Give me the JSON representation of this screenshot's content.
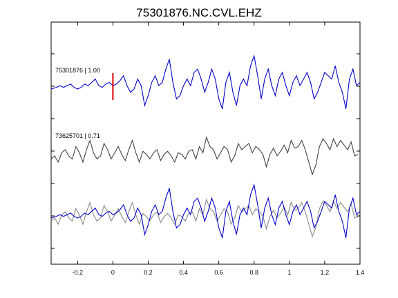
{
  "chart_data": {
    "type": "line",
    "title": "75301876.NC.CVL.EHZ",
    "xlabel": "",
    "ylabel": "",
    "xlim": [
      -0.35,
      1.4
    ],
    "xticks": [
      -0.2,
      0,
      0.2,
      0.4,
      0.6,
      0.8,
      1,
      1.2,
      1.4
    ],
    "xtick_labels": [
      "-0.2",
      "0",
      "0.2",
      "0.4",
      "0.6",
      "0.8",
      "1",
      "1.2",
      "1.4"
    ],
    "grid": false,
    "pick_time": 0,
    "pick_color": "#dd0000",
    "colors": {
      "target": "#0000cc",
      "reference": "#404040",
      "reference_overlay": "#888888",
      "axes": "#000000"
    },
    "traces": [
      {
        "label": "75301876 | 1.00",
        "role": "target"
      },
      {
        "label": "73625701 | 0.71",
        "role": "reference"
      },
      {
        "label": "",
        "role": "overlay"
      }
    ],
    "series": [
      {
        "name": "75301876",
        "x": [
          -0.35,
          -0.32,
          -0.3,
          -0.28,
          -0.26,
          -0.24,
          -0.22,
          -0.2,
          -0.18,
          -0.16,
          -0.14,
          -0.12,
          -0.1,
          -0.08,
          -0.06,
          -0.04,
          -0.02,
          0,
          0.02,
          0.04,
          0.06,
          0.08,
          0.1,
          0.12,
          0.14,
          0.16,
          0.18,
          0.2,
          0.22,
          0.24,
          0.26,
          0.28,
          0.3,
          0.32,
          0.34,
          0.36,
          0.38,
          0.4,
          0.42,
          0.44,
          0.46,
          0.48,
          0.5,
          0.52,
          0.54,
          0.56,
          0.58,
          0.6,
          0.62,
          0.64,
          0.66,
          0.68,
          0.7,
          0.72,
          0.74,
          0.76,
          0.78,
          0.8,
          0.82,
          0.84,
          0.86,
          0.88,
          0.9,
          0.92,
          0.94,
          0.96,
          0.98,
          1,
          1.02,
          1.04,
          1.06,
          1.08,
          1.1,
          1.12,
          1.14,
          1.16,
          1.18,
          1.2,
          1.22,
          1.24,
          1.26,
          1.28,
          1.3,
          1.32,
          1.34,
          1.36,
          1.38,
          1.4
        ],
        "y": [
          0,
          0.05,
          0.1,
          0.05,
          0.1,
          0.15,
          0.05,
          0,
          0.05,
          0.15,
          0.1,
          0.2,
          0.3,
          0.1,
          0.05,
          0.15,
          0.2,
          0.1,
          0.15,
          0.25,
          0.4,
          0.1,
          -0.1,
          0,
          0.3,
          0.1,
          -0.5,
          -0.2,
          0.2,
          0.4,
          0.1,
          0.2,
          0.6,
          0.9,
          0.2,
          -0.3,
          -0.2,
          0.1,
          0.3,
          0.1,
          0.5,
          0.6,
          0.3,
          -0.1,
          0.2,
          0.6,
          0.3,
          -0.3,
          -0.6,
          0.2,
          0.5,
          -0.1,
          -0.5,
          0.1,
          0.3,
          0.1,
          0.7,
          1.0,
          0.4,
          -0.3,
          0.3,
          0.6,
          0.1,
          -0.2,
          0.3,
          0.5,
          0.1,
          -0.2,
          0.2,
          0.4,
          0.1,
          0.3,
          0.5,
          0.2,
          -0.3,
          -0.1,
          0.2,
          0.5,
          0.4,
          0.3,
          0.7,
          0.2,
          -0.1,
          -0.6,
          0.3,
          0.6,
          0.1,
          0.2
        ]
      },
      {
        "name": "73625701",
        "x": [
          -0.35,
          -0.33,
          -0.31,
          -0.29,
          -0.27,
          -0.25,
          -0.23,
          -0.21,
          -0.19,
          -0.17,
          -0.15,
          -0.13,
          -0.11,
          -0.09,
          -0.07,
          -0.05,
          -0.03,
          -0.01,
          0.01,
          0.03,
          0.05,
          0.07,
          0.09,
          0.11,
          0.13,
          0.15,
          0.17,
          0.19,
          0.21,
          0.23,
          0.25,
          0.27,
          0.29,
          0.31,
          0.33,
          0.35,
          0.37,
          0.39,
          0.41,
          0.43,
          0.45,
          0.47,
          0.49,
          0.51,
          0.53,
          0.55,
          0.57,
          0.59,
          0.61,
          0.63,
          0.65,
          0.67,
          0.69,
          0.71,
          0.73,
          0.75,
          0.77,
          0.79,
          0.81,
          0.83,
          0.85,
          0.87,
          0.89,
          0.91,
          0.93,
          0.95,
          0.97,
          0.99,
          1.01,
          1.03,
          1.05,
          1.07,
          1.09,
          1.11,
          1.13,
          1.15,
          1.17,
          1.19,
          1.21,
          1.23,
          1.25,
          1.27,
          1.29,
          1.31,
          1.33,
          1.35,
          1.37,
          1.39
        ],
        "y": [
          -0.1,
          0,
          -0.2,
          0.1,
          0.2,
          0,
          -0.1,
          0.3,
          0.1,
          -0.2,
          0.2,
          0.5,
          0.1,
          -0.1,
          0,
          0.4,
          0.2,
          -0.1,
          0.1,
          0.3,
          0.05,
          -0.15,
          0.2,
          0.5,
          0.1,
          -0.2,
          0.15,
          0.05,
          -0.1,
          0.1,
          0.2,
          -0.15,
          0.05,
          0.15,
          0,
          -0.2,
          0.1,
          0.05,
          -0.1,
          0.15,
          0.2,
          -0.1,
          0.3,
          0.1,
          0.6,
          0.3,
          0.2,
          -0.1,
          0.1,
          0.3,
          0.2,
          -0.2,
          0,
          0.4,
          0.2,
          0.3,
          0.4,
          0.1,
          0.3,
          0.2,
          0.05,
          -0.35,
          0.05,
          0.25,
          0,
          0.15,
          0.35,
          0.1,
          0.5,
          0.25,
          0.3,
          0.5,
          0.2,
          -0.2,
          -0.6,
          -0.3,
          0.3,
          0.55,
          0.4,
          0.2,
          0.55,
          0.3,
          0.5,
          0.35,
          0.2,
          0.45,
          0,
          0.05
        ]
      }
    ]
  }
}
